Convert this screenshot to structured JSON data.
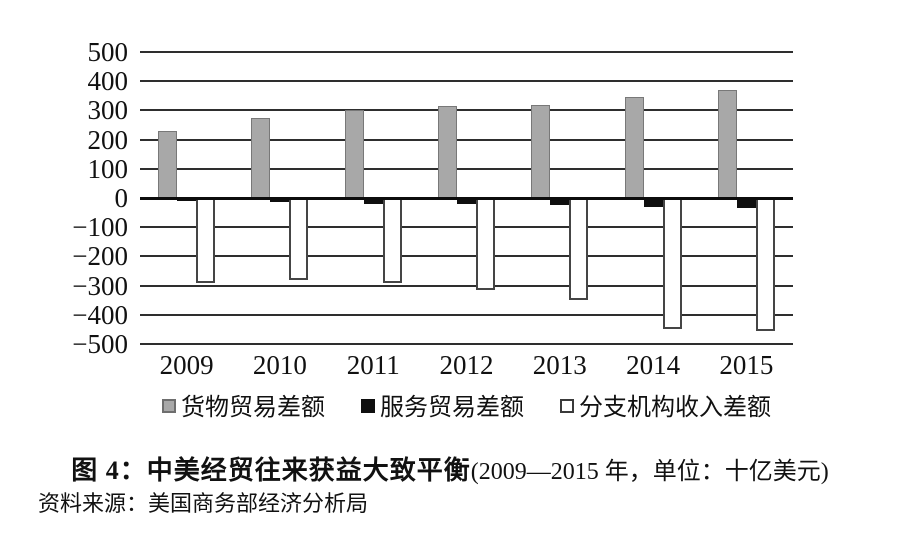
{
  "figure": {
    "caption_bold": "图 4：中美经贸往来获益大致平衡",
    "caption_paren": "(2009—2015 年，单位：十亿美元)",
    "source": "资料来源：美国商务部经济分析局"
  },
  "chart_data": {
    "type": "bar",
    "title": "图 4：中美经贸往来获益大致平衡(2009—2015 年，单位：十亿美元)",
    "categories": [
      "2009",
      "2010",
      "2011",
      "2012",
      "2013",
      "2014",
      "2015"
    ],
    "series": [
      {
        "key": "goods-trade-balance",
        "name": "货物贸易差额",
        "values": [
          230,
          275,
          300,
          315,
          320,
          345,
          370
        ],
        "fill": "#a8a8a8",
        "border": "#787878",
        "swatch_border": "#6e6e6e"
      },
      {
        "key": "services-trade-balance",
        "name": "服务贸易差额",
        "values": [
          -10,
          -15,
          -20,
          -20,
          -25,
          -30,
          -35
        ],
        "fill": "#0f0f0f",
        "border": "#0f0f0f",
        "swatch_border": "#0f0f0f"
      },
      {
        "key": "branch-income-balance",
        "name": "分支机构收入差额",
        "values": [
          -290,
          -280,
          -290,
          -315,
          -350,
          -450,
          -455
        ],
        "fill": "#ffffff",
        "border": "#454545",
        "swatch_border": "#3a3a3a"
      }
    ],
    "ylim": [
      -500,
      500
    ],
    "yticks": [
      "500",
      "400",
      "300",
      "200",
      "100",
      "0",
      "−100",
      "−200",
      "−300",
      "−400",
      "−500"
    ],
    "grid": true,
    "gridline_color": "#2e2e2e",
    "legend_position": "bottom",
    "unit": "十亿美元",
    "x_range_label": "2009—2015 年"
  }
}
